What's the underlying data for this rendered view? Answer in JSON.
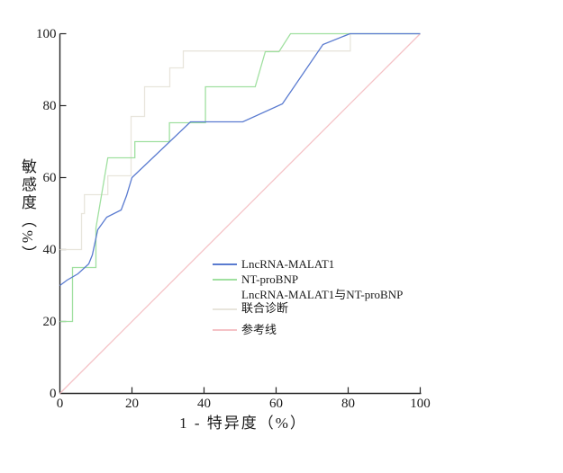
{
  "chart_data": {
    "type": "line",
    "title": "",
    "xlabel": "1 - 特异度（%）",
    "ylabel": "敏感度（%）",
    "xlim": [
      0,
      100
    ],
    "ylim": [
      0,
      100
    ],
    "x_ticks": [
      "0",
      "20",
      "40",
      "60",
      "80",
      "100"
    ],
    "x_tick_values": [
      0,
      20,
      40,
      60,
      80,
      100
    ],
    "y_ticks": [
      "0",
      "20",
      "40",
      "60",
      "80",
      "100"
    ],
    "y_tick_values": [
      0,
      20,
      40,
      60,
      80,
      100
    ],
    "grid": false,
    "legend_position": "center-right",
    "axis_color": "#262626",
    "series": [
      {
        "name": "参考线",
        "color": "#f5c2c6",
        "points": [
          [
            0,
            0
          ],
          [
            100,
            100
          ]
        ]
      },
      {
        "name": "LncRNA-MALAT1与NT-proBNP 联合诊断",
        "color": "#e8e5dc",
        "points": [
          [
            0,
            40
          ],
          [
            6,
            40
          ],
          [
            6,
            50
          ],
          [
            6.8,
            50
          ],
          [
            6.8,
            55.25
          ],
          [
            13.3,
            55.25
          ],
          [
            13.3,
            60.5
          ],
          [
            19.75,
            60.5
          ],
          [
            19.75,
            77
          ],
          [
            23.5,
            77
          ],
          [
            23.5,
            85.25
          ],
          [
            30.5,
            85.25
          ],
          [
            30.5,
            90.5
          ],
          [
            34.25,
            90.5
          ],
          [
            34.25,
            95.2
          ],
          [
            80.6,
            95.2
          ],
          [
            80.6,
            100
          ],
          [
            100,
            100
          ]
        ]
      },
      {
        "name": "NT-proBNP",
        "color": "#a0e0a0",
        "points": [
          [
            0,
            20
          ],
          [
            3.5,
            20
          ],
          [
            3.5,
            35
          ],
          [
            10,
            35
          ],
          [
            10,
            46
          ],
          [
            13.3,
            65.5
          ],
          [
            20.8,
            65.5
          ],
          [
            20.8,
            70
          ],
          [
            30.4,
            70
          ],
          [
            30.4,
            75.25
          ],
          [
            40.4,
            75.25
          ],
          [
            40.4,
            85.25
          ],
          [
            54.2,
            85.25
          ],
          [
            57,
            95
          ],
          [
            60.8,
            95
          ],
          [
            64,
            100
          ],
          [
            100,
            100
          ]
        ]
      },
      {
        "name": "LncRNA-MALAT1",
        "color": "#5a7bd0",
        "points": [
          [
            0,
            30
          ],
          [
            2,
            31.5
          ],
          [
            5,
            33.25
          ],
          [
            8,
            36
          ],
          [
            9,
            38.5
          ],
          [
            10.5,
            45.5
          ],
          [
            13,
            49
          ],
          [
            17,
            51
          ],
          [
            18.5,
            55
          ],
          [
            20,
            60
          ],
          [
            36.25,
            75.5
          ],
          [
            50.75,
            75.5
          ],
          [
            61.75,
            80.5
          ],
          [
            73,
            97
          ],
          [
            80.5,
            100
          ],
          [
            100,
            100
          ]
        ]
      }
    ]
  },
  "legend": {
    "items": [
      {
        "label": "LncRNA-MALAT1",
        "color": "#5a7bd0"
      },
      {
        "label": "NT-proBNP",
        "color": "#a0e0a0"
      },
      {
        "label_line1": "LncRNA-MALAT1与NT-proBNP",
        "label_line2": "联合诊断",
        "color": "#e8e5dc"
      },
      {
        "label": "参考线",
        "color": "#f5c2c6"
      }
    ]
  }
}
